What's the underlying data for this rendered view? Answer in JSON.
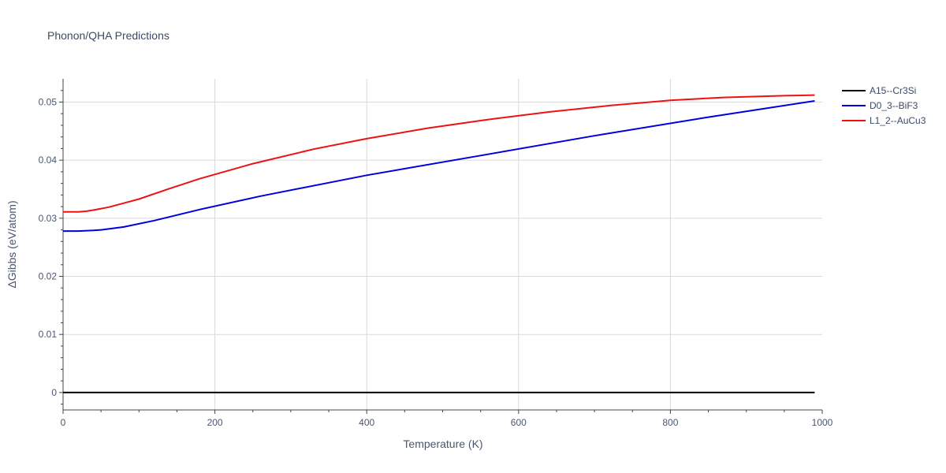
{
  "chart_data": {
    "type": "line",
    "title": "Phonon/QHA Predictions",
    "xlabel": "Temperature (K)",
    "ylabel": "ΔGibbs (eV/atom)",
    "xlim": [
      0,
      1000
    ],
    "ylim": [
      -0.003,
      0.054
    ],
    "xticks": [
      0,
      200,
      400,
      600,
      800,
      1000
    ],
    "xtick_labels": [
      "0",
      "200",
      "400",
      "600",
      "800",
      "1000"
    ],
    "yticks": [
      0,
      0.01,
      0.02,
      0.03,
      0.04,
      0.05
    ],
    "ytick_labels": [
      "0",
      "0.01",
      "0.02",
      "0.03",
      "0.04",
      "0.05"
    ],
    "grid": true,
    "legend_position": "top-right, outside plot",
    "series": [
      {
        "name": "A15--Cr3Si",
        "color": "#000000",
        "x": [
          0,
          990
        ],
        "y": [
          0,
          0
        ]
      },
      {
        "name": "D0_3--BiF3",
        "color": "#0000dd",
        "x": [
          0,
          20,
          40,
          50,
          80,
          120,
          180,
          260,
          400,
          550,
          700,
          850,
          990
        ],
        "y": [
          0.0278,
          0.0278,
          0.0279,
          0.028,
          0.0285,
          0.0296,
          0.0315,
          0.0338,
          0.0374,
          0.0408,
          0.0442,
          0.0474,
          0.0502
        ]
      },
      {
        "name": "L1_2--AuCu3",
        "color": "#ee1111",
        "x": [
          0,
          20,
          30,
          40,
          60,
          80,
          100,
          140,
          180,
          250,
          330,
          400,
          480,
          560,
          640,
          720,
          800,
          870,
          950,
          990
        ],
        "y": [
          0.0311,
          0.0311,
          0.0312,
          0.0314,
          0.0319,
          0.0326,
          0.0333,
          0.0351,
          0.0368,
          0.0394,
          0.0419,
          0.0437,
          0.0455,
          0.047,
          0.0483,
          0.0494,
          0.0503,
          0.0508,
          0.0511,
          0.0512
        ]
      }
    ]
  }
}
